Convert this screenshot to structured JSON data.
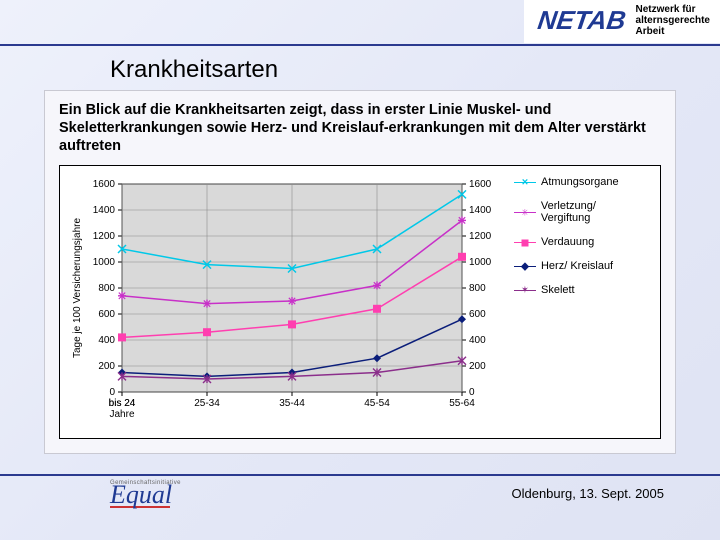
{
  "brand": {
    "logo_text": "NETAB",
    "tagline_l1": "Netzwerk für",
    "tagline_l2": "alternsgerechte",
    "tagline_l3": "Arbeit",
    "logo_color": "#1f3a93"
  },
  "title": "Krankheitsarten",
  "intro": "Ein Blick auf die Krankheitsarten zeigt, dass in erster Linie Muskel- und Skeletterkrankungen sowie Herz- und Kreislauf-erkrankungen mit dem Alter verstärkt auftreten",
  "chart": {
    "type": "line",
    "ylabel": "Tage je 100 Versicherungsjahre",
    "label_fontsize": 10,
    "xlim": [
      0,
      4
    ],
    "ylim": [
      0,
      1600
    ],
    "ytick_step": 200,
    "categories": [
      "bis 24 Jahre",
      "25-34",
      "35-44",
      "45-54",
      "55-64"
    ],
    "background_color": "#d9d9d9",
    "grid_color": "#8a8a8a",
    "axis_color": "#000000",
    "line_width": 1.5,
    "series": [
      {
        "key": "atmung",
        "label": "Atmungsorgane",
        "color": "#00c8e8",
        "marker": "x",
        "values": [
          1100,
          980,
          950,
          1100,
          1520
        ]
      },
      {
        "key": "verletz",
        "label": "Verletzung/ Vergiftung",
        "color": "#c830c8",
        "marker": "asterisk",
        "values": [
          740,
          680,
          700,
          820,
          1320
        ]
      },
      {
        "key": "verdau",
        "label": "Verdauung",
        "color": "#ff3fb0",
        "marker": "square",
        "values": [
          420,
          460,
          520,
          640,
          1040
        ]
      },
      {
        "key": "herz",
        "label": "Herz/ Kreislauf",
        "color": "#0b1e7a",
        "marker": "diamond",
        "values": [
          150,
          120,
          150,
          260,
          560
        ]
      },
      {
        "key": "skelett",
        "label": "Skelett",
        "color": "#8b2e8b",
        "marker": "star",
        "values": [
          120,
          100,
          120,
          150,
          240
        ]
      }
    ]
  },
  "equal": {
    "super": "Gemeinschaftsinitiative",
    "word": "Equal"
  },
  "footer_date": "Oldenburg, 13. Sept. 2005",
  "rule_color": "#2b3a8f"
}
